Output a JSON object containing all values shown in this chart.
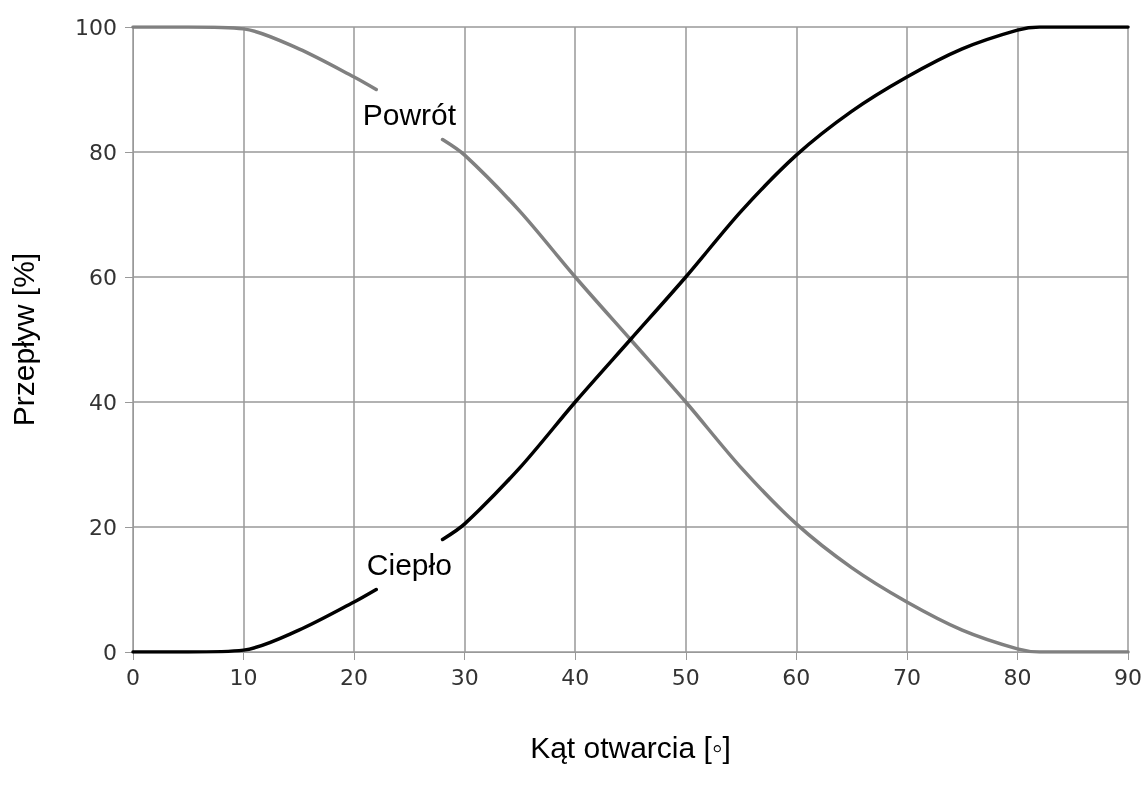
{
  "chart_data": {
    "type": "line",
    "xlabel": "Kąt otwarcia [◦]",
    "ylabel": "Przepływ [%]",
    "xlim": [
      0,
      90
    ],
    "xticks": [
      0,
      10,
      20,
      30,
      40,
      50,
      60,
      70,
      80,
      90
    ],
    "ylim": [
      0,
      100
    ],
    "yticks": [
      0,
      20,
      40,
      60,
      80,
      100
    ],
    "grid": true,
    "legend": false,
    "marker": "none",
    "line_style": "solid",
    "series": [
      {
        "name": "Powrót",
        "color": "#808080",
        "x": [
          0,
          5,
          10,
          15,
          20,
          22,
          25,
          28,
          30,
          35,
          40,
          45,
          50,
          55,
          60,
          65,
          70,
          75,
          80,
          82,
          85,
          90
        ],
        "values": [
          100,
          100,
          99.7,
          96.5,
          92,
          90,
          null,
          82,
          79.5,
          70.5,
          60,
          50,
          40,
          29.5,
          20.5,
          13.5,
          8,
          3.5,
          0.5,
          0,
          0,
          0
        ]
      },
      {
        "name": "Ciepło",
        "color": "#000000",
        "x": [
          0,
          5,
          10,
          15,
          20,
          22,
          25,
          28,
          30,
          35,
          40,
          45,
          50,
          55,
          60,
          65,
          70,
          75,
          80,
          82,
          85,
          90
        ],
        "values": [
          0,
          0,
          0.3,
          3.5,
          8,
          10,
          null,
          18,
          20.5,
          29.5,
          40,
          50,
          60,
          70.5,
          79.5,
          86.5,
          92,
          96.5,
          99.5,
          100,
          100,
          100
        ]
      }
    ]
  }
}
